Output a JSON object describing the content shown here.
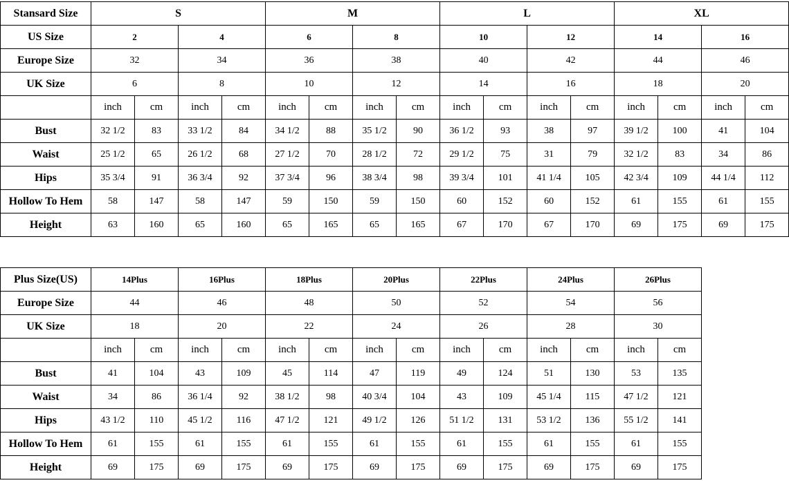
{
  "tables": [
    {
      "header": {
        "label": "Stansard Size",
        "values": [
          "S",
          "M",
          "L",
          "XL"
        ]
      },
      "rows": [
        {
          "label": "US Size",
          "values": [
            2,
            4,
            6,
            8,
            10,
            12,
            14,
            16
          ]
        },
        {
          "label": "Europe Size",
          "values": [
            32,
            34,
            36,
            38,
            40,
            42,
            44,
            46
          ]
        },
        {
          "label": "UK Size",
          "values": [
            6,
            8,
            10,
            12,
            14,
            16,
            18,
            20
          ]
        }
      ],
      "units": [
        "inch",
        "cm",
        "inch",
        "cm",
        "inch",
        "cm",
        "inch",
        "cm",
        "inch",
        "cm",
        "inch",
        "cm",
        "inch",
        "cm",
        "inch",
        "cm"
      ],
      "measurements": [
        {
          "label": "Bust",
          "values": [
            "32 1/2",
            83,
            "33 1/2",
            84,
            "34 1/2",
            88,
            "35 1/2",
            90,
            "36 1/2",
            93,
            38,
            97,
            "39 1/2",
            100,
            41,
            104
          ]
        },
        {
          "label": "Waist",
          "values": [
            "25 1/2",
            65,
            "26 1/2",
            68,
            "27 1/2",
            70,
            "28 1/2",
            72,
            "29 1/2",
            75,
            31,
            79,
            "32 1/2",
            83,
            34,
            86
          ]
        },
        {
          "label": "Hips",
          "values": [
            "35 3/4",
            91,
            "36 3/4",
            92,
            "37 3/4",
            96,
            "38 3/4",
            98,
            "39 3/4",
            101,
            "41 1/4",
            105,
            "42 3/4",
            109,
            "44 1/4",
            112
          ]
        },
        {
          "label": "Hollow To Hem",
          "values": [
            58,
            147,
            58,
            147,
            59,
            150,
            59,
            150,
            60,
            152,
            60,
            152,
            61,
            155,
            61,
            155
          ]
        },
        {
          "label": "Height",
          "values": [
            63,
            160,
            65,
            160,
            65,
            165,
            65,
            165,
            67,
            170,
            67,
            170,
            69,
            175,
            69,
            175
          ]
        }
      ]
    },
    {
      "header": {
        "label": "Plus Size(US)",
        "values": [
          "14Plus",
          "16Plus",
          "18Plus",
          "20Plus",
          "22Plus",
          "24Plus",
          "26Plus"
        ]
      },
      "rows": [
        {
          "label": "Europe Size",
          "values": [
            44,
            46,
            48,
            50,
            52,
            54,
            56
          ]
        },
        {
          "label": "UK Size",
          "values": [
            18,
            20,
            22,
            24,
            26,
            28,
            30
          ]
        }
      ],
      "units": [
        "inch",
        "cm",
        "inch",
        "cm",
        "inch",
        "cm",
        "inch",
        "cm",
        "inch",
        "cm",
        "inch",
        "cm",
        "inch",
        "cm"
      ],
      "measurements": [
        {
          "label": "Bust",
          "values": [
            41,
            104,
            43,
            109,
            45,
            114,
            47,
            119,
            49,
            124,
            51,
            130,
            53,
            135
          ]
        },
        {
          "label": "Waist",
          "values": [
            34,
            86,
            "36 1/4",
            92,
            "38 1/2",
            98,
            "40 3/4",
            104,
            43,
            109,
            "45 1/4",
            115,
            "47 1/2",
            121
          ]
        },
        {
          "label": "Hips",
          "values": [
            "43 1/2",
            110,
            "45 1/2",
            116,
            "47 1/2",
            121,
            "49 1/2",
            126,
            "51 1/2",
            131,
            "53 1/2",
            136,
            "55 1/2",
            141
          ]
        },
        {
          "label": "Hollow To Hem",
          "values": [
            61,
            155,
            61,
            155,
            61,
            155,
            61,
            155,
            61,
            155,
            61,
            155,
            61,
            155
          ]
        },
        {
          "label": "Height",
          "values": [
            69,
            175,
            69,
            175,
            69,
            175,
            69,
            175,
            69,
            175,
            69,
            175,
            69,
            175
          ]
        }
      ]
    }
  ]
}
